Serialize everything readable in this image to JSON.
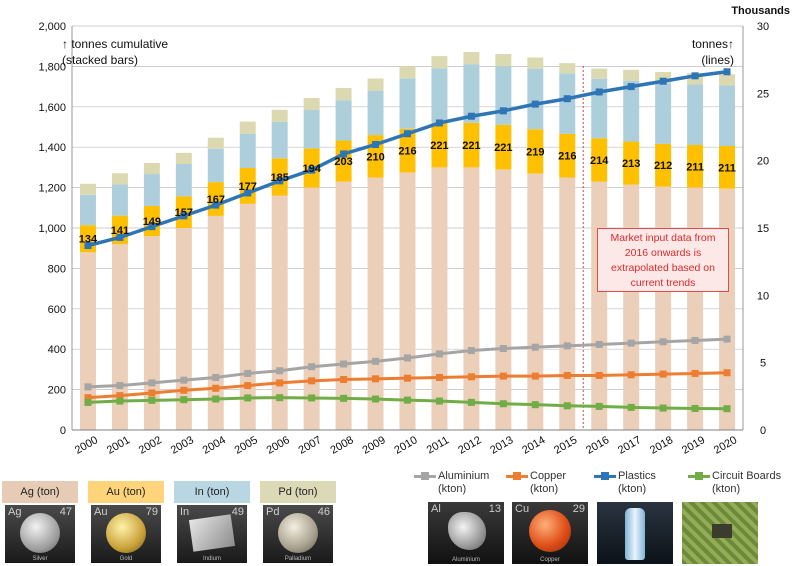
{
  "chart_data": {
    "type": "bar",
    "subtype": "stacked bars with line overlay on secondary axis",
    "categories": [
      "2000",
      "2001",
      "2002",
      "2003",
      "2004",
      "2005",
      "2006",
      "2007",
      "2008",
      "2009",
      "2010",
      "2011",
      "2012",
      "2013",
      "2014",
      "2015",
      "2016",
      "2017",
      "2018",
      "2019",
      "2020"
    ],
    "left_axis": {
      "title": "↑ tonnes cumulative\n(stacked bars)",
      "ylim": [
        0,
        2000
      ],
      "ticks": [
        "0",
        "200",
        "400",
        "600",
        "800",
        "1,000",
        "1,200",
        "1,400",
        "1,600",
        "1,800",
        "2,000"
      ]
    },
    "right_axis": {
      "unit_label": "Thousands",
      "title": "tonnes↑\n(lines)",
      "ylim": [
        0,
        30
      ],
      "ticks": [
        "0",
        "5",
        "10",
        "15",
        "20",
        "25",
        "30"
      ]
    },
    "bar_series": [
      {
        "name": "Ag (ton)",
        "color": "#ebcfb9",
        "values": [
          880,
          920,
          960,
          1000,
          1060,
          1120,
          1160,
          1200,
          1230,
          1250,
          1275,
          1300,
          1300,
          1290,
          1270,
          1250,
          1230,
          1215,
          1205,
          1200,
          1195
        ]
      },
      {
        "name": "Au (ton)",
        "color": "#ffc000",
        "values": [
          134,
          141,
          149,
          157,
          167,
          177,
          185,
          194,
          203,
          210,
          216,
          221,
          221,
          221,
          219,
          216,
          214,
          213,
          212,
          211,
          211
        ]
      },
      {
        "name": "In (ton)",
        "color": "#adcfdc",
        "values": [
          150,
          155,
          158,
          160,
          165,
          170,
          180,
          190,
          200,
          220,
          250,
          270,
          290,
          290,
          300,
          300,
          295,
          300,
          300,
          300,
          300
        ]
      },
      {
        "name": "Pd (ton)",
        "color": "#dcd8b0",
        "values": [
          55,
          55,
          55,
          55,
          55,
          60,
          60,
          60,
          60,
          60,
          60,
          60,
          60,
          60,
          55,
          50,
          50,
          55,
          55,
          55,
          55
        ]
      }
    ],
    "bar_value_labels": [
      "134",
      "141",
      "149",
      "157",
      "167",
      "177",
      "185",
      "194",
      "203",
      "210",
      "216",
      "221",
      "221",
      "221",
      "219",
      "216",
      "214",
      "213",
      "212",
      "211",
      "211"
    ],
    "line_series": [
      {
        "name": "Plastics",
        "unit": "(kton)",
        "color": "#2e75b6",
        "values": [
          13.7,
          14.3,
          15.1,
          15.9,
          16.7,
          17.6,
          18.5,
          19.3,
          20.5,
          21.2,
          22.0,
          22.8,
          23.3,
          23.7,
          24.2,
          24.6,
          25.1,
          25.5,
          25.9,
          26.3,
          26.6
        ]
      },
      {
        "name": "Aluminium",
        "unit": "(kton)",
        "color": "#a5a5a5",
        "values": [
          3.2,
          3.3,
          3.5,
          3.7,
          3.9,
          4.2,
          4.4,
          4.7,
          4.9,
          5.1,
          5.35,
          5.65,
          5.9,
          6.05,
          6.15,
          6.25,
          6.35,
          6.45,
          6.55,
          6.65,
          6.75
        ]
      },
      {
        "name": "Copper",
        "unit": "(kton)",
        "color": "#ed7d31",
        "values": [
          2.4,
          2.55,
          2.75,
          2.95,
          3.1,
          3.3,
          3.5,
          3.65,
          3.75,
          3.8,
          3.85,
          3.9,
          3.95,
          4.0,
          4.0,
          4.05,
          4.05,
          4.1,
          4.15,
          4.2,
          4.25
        ]
      },
      {
        "name": "Circuit Boards",
        "unit": "(kton)",
        "color": "#70ad47",
        "values": [
          2.05,
          2.15,
          2.2,
          2.25,
          2.3,
          2.38,
          2.4,
          2.38,
          2.35,
          2.3,
          2.22,
          2.15,
          2.05,
          1.95,
          1.88,
          1.8,
          1.75,
          1.68,
          1.63,
          1.6,
          1.58
        ]
      }
    ],
    "extrapolation_start": "2016",
    "annotation": "Market input data from\n2016 onwards  is\nextrapolated based on\ncurrent trends",
    "grid": true
  },
  "element_tiles": [
    {
      "header": "Ag (ton)",
      "header_color": "#e6cbb5",
      "symbol": "Ag",
      "number": "47",
      "name": "Silver"
    },
    {
      "header": "Au (ton)",
      "header_color": "#ffd47a",
      "symbol": "Au",
      "number": "79",
      "name": "Gold"
    },
    {
      "header": "In (ton)",
      "header_color": "#b9d7e3",
      "symbol": "In",
      "number": "49",
      "name": "Indium"
    },
    {
      "header": "Pd (ton)",
      "header_color": "#dcd9b6",
      "symbol": "Pd",
      "number": "46",
      "name": "Palladium"
    }
  ],
  "material_photos": [
    {
      "symbol": "Al",
      "number": "13",
      "name": "Aluminium"
    },
    {
      "symbol": "Cu",
      "number": "29",
      "name": "Copper"
    }
  ],
  "colors": {
    "grid": "#bfbfbf",
    "axis": "#808080",
    "dashed_line": "#e0404a"
  }
}
